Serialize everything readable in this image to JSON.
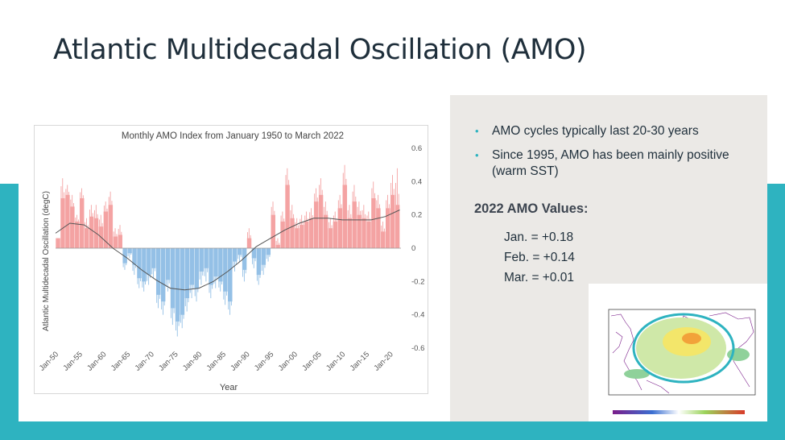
{
  "slide": {
    "title": "Atlantic Multidecadal Oscillation (AMO)",
    "bullets": [
      "AMO cycles typically last 20-30 years",
      "Since 1995, AMO has been mainly positive (warm SST)"
    ],
    "values_heading": "2022 AMO Values:",
    "values": [
      "Jan. = +0.18",
      "Feb. = +0.14",
      "Mar. = +0.01"
    ]
  },
  "colors": {
    "teal": "#2eb3c0",
    "title_text": "#1f2f3b",
    "positive_bar": "#f4a3a3",
    "negative_bar": "#94c0e6",
    "trend_line": "#555555",
    "panel_bg": "#ebe9e6"
  },
  "chart_data": {
    "type": "bar",
    "title": "Monthly AMO Index from January 1950 to March 2022",
    "xlabel": "Year",
    "ylabel": "Atlantic Multidecadal Oscillation (degC)",
    "ylim": [
      -0.6,
      0.6
    ],
    "y_ticks": [
      "0.6",
      "0.4",
      "0.2",
      "0",
      "-0.2",
      "-0.4",
      "-0.6"
    ],
    "y_axis_side": "right",
    "x_ticks": [
      "Jan-50",
      "Jan-55",
      "Jan-60",
      "Jan-65",
      "Jan-70",
      "Jan-75",
      "Jan-80",
      "Jan-85",
      "Jan-90",
      "Jan-95",
      "Jan-00",
      "Jan-05",
      "Jan-10",
      "Jan-15",
      "Jan-20"
    ],
    "x_range": [
      1950,
      2022.25
    ],
    "series": [
      {
        "kind": "bar",
        "x": [
          1950,
          1951,
          1952,
          1953,
          1954,
          1955,
          1956,
          1957,
          1958,
          1959,
          1960,
          1961,
          1962,
          1963,
          1964,
          1965,
          1966,
          1967,
          1968,
          1969,
          1970,
          1971,
          1972,
          1973,
          1974,
          1975,
          1976,
          1977,
          1978,
          1979,
          1980,
          1981,
          1982,
          1983,
          1984,
          1985,
          1986,
          1987,
          1988,
          1989,
          1990,
          1991,
          1992,
          1993,
          1994,
          1995,
          1996,
          1997,
          1998,
          1999,
          2000,
          2001,
          2002,
          2003,
          2004,
          2005,
          2006,
          2007,
          2008,
          2009,
          2010,
          2011,
          2012,
          2013,
          2014,
          2015,
          2016,
          2017,
          2018,
          2019,
          2020,
          2021
        ],
        "values": [
          0.06,
          0.3,
          0.32,
          0.25,
          0.16,
          0.3,
          0.12,
          0.19,
          0.18,
          0.13,
          0.22,
          0.26,
          0.07,
          0.08,
          -0.09,
          -0.03,
          -0.1,
          -0.18,
          -0.2,
          -0.16,
          -0.12,
          -0.28,
          -0.32,
          -0.19,
          -0.36,
          -0.44,
          -0.4,
          -0.3,
          -0.22,
          -0.24,
          -0.14,
          -0.12,
          -0.22,
          -0.17,
          -0.2,
          -0.26,
          -0.32,
          -0.08,
          -0.04,
          -0.13,
          0.06,
          -0.06,
          -0.16,
          -0.1,
          -0.04,
          0.2,
          0.02,
          0.16,
          0.38,
          0.18,
          0.12,
          0.14,
          0.16,
          0.18,
          0.28,
          0.32,
          0.2,
          0.12,
          0.16,
          0.24,
          0.38,
          0.18,
          0.28,
          0.2,
          0.18,
          0.16,
          0.3,
          0.24,
          0.1,
          0.24,
          0.32,
          0.26
        ],
        "peaks": [
          0.06,
          0.42,
          0.38,
          0.32,
          0.2,
          0.36,
          0.18,
          0.26,
          0.26,
          0.2,
          0.28,
          0.34,
          0.12,
          0.14,
          -0.13,
          -0.06,
          -0.16,
          -0.24,
          -0.26,
          -0.22,
          -0.18,
          -0.36,
          -0.4,
          -0.26,
          -0.46,
          -0.53,
          -0.48,
          -0.38,
          -0.3,
          -0.32,
          -0.22,
          -0.2,
          -0.3,
          -0.24,
          -0.26,
          -0.34,
          -0.4,
          -0.14,
          -0.08,
          -0.2,
          0.12,
          -0.12,
          -0.22,
          -0.16,
          -0.08,
          0.28,
          0.06,
          0.22,
          0.48,
          0.26,
          0.18,
          0.2,
          0.22,
          0.24,
          0.36,
          0.42,
          0.28,
          0.18,
          0.22,
          0.32,
          0.5,
          0.26,
          0.38,
          0.28,
          0.26,
          0.22,
          0.4,
          0.32,
          0.16,
          0.32,
          0.44,
          0.48
        ]
      },
      {
        "kind": "line",
        "x": [
          1950,
          1953,
          1956,
          1959,
          1962,
          1965,
          1968,
          1971,
          1974,
          1977,
          1980,
          1983,
          1986,
          1989,
          1992,
          1995,
          1998,
          2001,
          2004,
          2007,
          2010,
          2013,
          2016,
          2019,
          2022
        ],
        "values": [
          0.09,
          0.15,
          0.14,
          0.08,
          0.0,
          -0.06,
          -0.13,
          -0.19,
          -0.24,
          -0.25,
          -0.24,
          -0.2,
          -0.14,
          -0.07,
          0.01,
          0.06,
          0.11,
          0.15,
          0.18,
          0.18,
          0.17,
          0.17,
          0.17,
          0.19,
          0.23
        ]
      }
    ]
  }
}
